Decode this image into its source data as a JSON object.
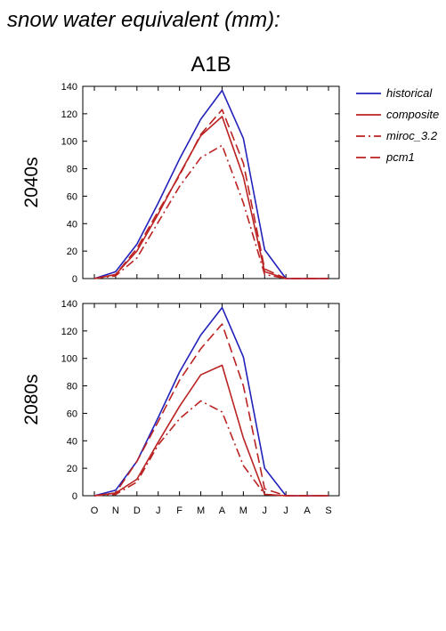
{
  "figure": {
    "title": "snow water equivalent (mm):",
    "panel_title": "A1B"
  },
  "colors": {
    "historical": "#2222bb",
    "scenario": "#bb2222"
  },
  "chart_data": [
    {
      "type": "line",
      "row_label": "2040s",
      "categories": [
        "O",
        "N",
        "D",
        "J",
        "F",
        "M",
        "A",
        "M",
        "J",
        "J",
        "A",
        "S"
      ],
      "ylim": [
        0,
        140
      ],
      "yticks": [
        0,
        20,
        40,
        60,
        80,
        100,
        120,
        140
      ],
      "show_x_tick_labels": false,
      "series": [
        {
          "name": "historical",
          "style": "solid",
          "color": "#2222bb",
          "values": [
            0,
            5,
            25,
            55,
            87,
            116,
            137,
            102,
            21,
            0,
            0,
            0
          ]
        },
        {
          "name": "composite",
          "style": "solid",
          "color": "#bb2222",
          "values": [
            0,
            3,
            20,
            47,
            76,
            104,
            118,
            74,
            5,
            0,
            0,
            0
          ]
        },
        {
          "name": "miroc_3.2",
          "style": "dashdot",
          "color": "#bb2222",
          "values": [
            0,
            2,
            15,
            41,
            67,
            88,
            97,
            55,
            3,
            0,
            0,
            0
          ]
        },
        {
          "name": "pcm1",
          "style": "dashed",
          "color": "#bb2222",
          "values": [
            0,
            3,
            22,
            49,
            75,
            105,
            123,
            84,
            7,
            0,
            0,
            0
          ]
        }
      ]
    },
    {
      "type": "line",
      "row_label": "2080s",
      "categories": [
        "O",
        "N",
        "D",
        "J",
        "F",
        "M",
        "A",
        "M",
        "J",
        "J",
        "A",
        "S"
      ],
      "ylim": [
        0,
        140
      ],
      "yticks": [
        0,
        20,
        40,
        60,
        80,
        100,
        120,
        140
      ],
      "show_x_tick_labels": true,
      "series": [
        {
          "name": "historical",
          "style": "solid",
          "color": "#2222bb",
          "values": [
            0,
            4,
            25,
            57,
            90,
            117,
            137,
            101,
            20,
            0,
            0,
            0
          ]
        },
        {
          "name": "composite",
          "style": "solid",
          "color": "#bb2222",
          "values": [
            0,
            2,
            12,
            39,
            65,
            88,
            95,
            42,
            1,
            0,
            0,
            0
          ]
        },
        {
          "name": "miroc_3.2",
          "style": "dashdot",
          "color": "#bb2222",
          "values": [
            0,
            1,
            10,
            37,
            56,
            69,
            61,
            22,
            1,
            0,
            0,
            0
          ]
        },
        {
          "name": "pcm1",
          "style": "dashed",
          "color": "#bb2222",
          "values": [
            0,
            2,
            25,
            54,
            84,
            107,
            125,
            80,
            5,
            0,
            0,
            0
          ]
        }
      ]
    }
  ],
  "legend": {
    "placement": "right",
    "items": [
      {
        "label": "historical",
        "style": "solid",
        "color": "#2222bb"
      },
      {
        "label": "composite",
        "style": "solid",
        "color": "#bb2222"
      },
      {
        "label": "miroc_3.2",
        "style": "dashdot",
        "color": "#bb2222"
      },
      {
        "label": "pcm1",
        "style": "dashed",
        "color": "#bb2222"
      }
    ]
  }
}
